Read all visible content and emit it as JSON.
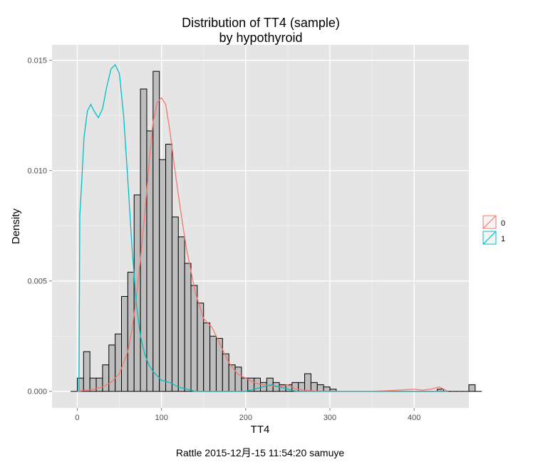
{
  "chart_data": {
    "type": "bar",
    "title": "Distribution of TT4 (sample)",
    "subtitle": "by hypothyroid",
    "xlabel": "TT4",
    "ylabel": "Density",
    "xlim": [
      -30,
      465
    ],
    "ylim": [
      -0.00075,
      0.0157
    ],
    "x_ticks": [
      0,
      100,
      200,
      300,
      400
    ],
    "x_tick_labels": [
      "0",
      "100",
      "200",
      "300",
      "400"
    ],
    "y_ticks": [
      0.0,
      0.005,
      0.01,
      0.015
    ],
    "y_tick_labels": [
      "0.000",
      "0.005",
      "0.010",
      "0.015"
    ],
    "grid": true,
    "legend_position": "right",
    "histogram": {
      "bin_width": 7.5,
      "first_bin_left": -7.5,
      "fill": "#bebebe",
      "stroke": "#000000",
      "values": [
        0.0,
        0.0006,
        0.0018,
        0.0006,
        0.0006,
        0.0012,
        0.0021,
        0.0026,
        0.0043,
        0.0054,
        0.0089,
        0.0137,
        0.0118,
        0.0145,
        0.0105,
        0.0112,
        0.0079,
        0.007,
        0.0058,
        0.0048,
        0.004,
        0.0031,
        0.0025,
        0.0024,
        0.0017,
        0.0012,
        0.0011,
        0.0006,
        0.0006,
        0.0006,
        0.0004,
        0.0006,
        0.0004,
        0.0003,
        0.0003,
        0.0004,
        0.0004,
        0.0008,
        0.0004,
        0.0003,
        0.0002,
        0.0001,
        0.0,
        0.0,
        0.0,
        0.0,
        0.0,
        0.0,
        0.0,
        0.0,
        0.0,
        0.0,
        0.0,
        0.0,
        0.0,
        0.0,
        0.0,
        0.0,
        0.0001,
        0.0,
        0.0,
        0.0,
        0.0,
        0.0003,
        0.0
      ]
    },
    "density_series": [
      {
        "name": "0",
        "color": "#f8766d",
        "x": [
          0,
          10,
          20,
          30,
          40,
          50,
          55,
          60,
          65,
          70,
          75,
          80,
          85,
          90,
          95,
          100,
          105,
          110,
          115,
          120,
          125,
          130,
          140,
          150,
          160,
          170,
          180,
          190,
          200,
          210,
          220,
          230,
          240,
          250,
          260,
          270,
          280,
          300,
          350,
          380,
          400,
          410,
          420,
          430,
          440
        ],
        "y": [
          0.0,
          5e-05,
          0.0001,
          0.0002,
          0.0004,
          0.0008,
          0.0013,
          0.0018,
          0.0028,
          0.0042,
          0.006,
          0.008,
          0.0102,
          0.0122,
          0.0131,
          0.0133,
          0.013,
          0.0118,
          0.0103,
          0.0089,
          0.0076,
          0.0064,
          0.0045,
          0.0033,
          0.0029,
          0.0021,
          0.0013,
          0.0008,
          0.0006,
          0.0004,
          0.0003,
          0.00025,
          0.0002,
          0.0003,
          0.0001,
          5e-05,
          2e-05,
          0.0,
          0.0,
          5e-05,
          0.0001,
          5e-05,
          0.0001,
          0.0002,
          0.0
        ]
      },
      {
        "name": "1",
        "color": "#00bfc4",
        "x": [
          2,
          3,
          5,
          8,
          12,
          16,
          20,
          25,
          30,
          35,
          40,
          45,
          50,
          55,
          60,
          65,
          70,
          75,
          80,
          85,
          90,
          95,
          100,
          110,
          120,
          130,
          140,
          150,
          180,
          200,
          220,
          230,
          240,
          250,
          260,
          300,
          400,
          440
        ],
        "y": [
          0.0,
          0.008,
          0.0093,
          0.0115,
          0.0127,
          0.013,
          0.0127,
          0.0124,
          0.0128,
          0.0138,
          0.0146,
          0.0148,
          0.0144,
          0.0125,
          0.0096,
          0.0065,
          0.004,
          0.0025,
          0.0017,
          0.0012,
          0.0009,
          0.0007,
          0.0005,
          0.0004,
          0.0002,
          0.0001,
          0.0,
          0.0,
          0.0,
          0.0,
          0.0002,
          0.0003,
          0.0002,
          0.0001,
          0.0,
          0.0,
          0.0,
          0.0
        ]
      }
    ]
  },
  "legend": {
    "items": [
      {
        "label": "0",
        "color": "#f8766d"
      },
      {
        "label": "1",
        "color": "#00bfc4"
      }
    ]
  },
  "colors": {
    "panel_background": "#e5e5e5",
    "grid_major": "#ffffff",
    "grid_minor": "#f2f2f2"
  },
  "footer": "Rattle 2015-12月-15 11:54:20 samuye"
}
